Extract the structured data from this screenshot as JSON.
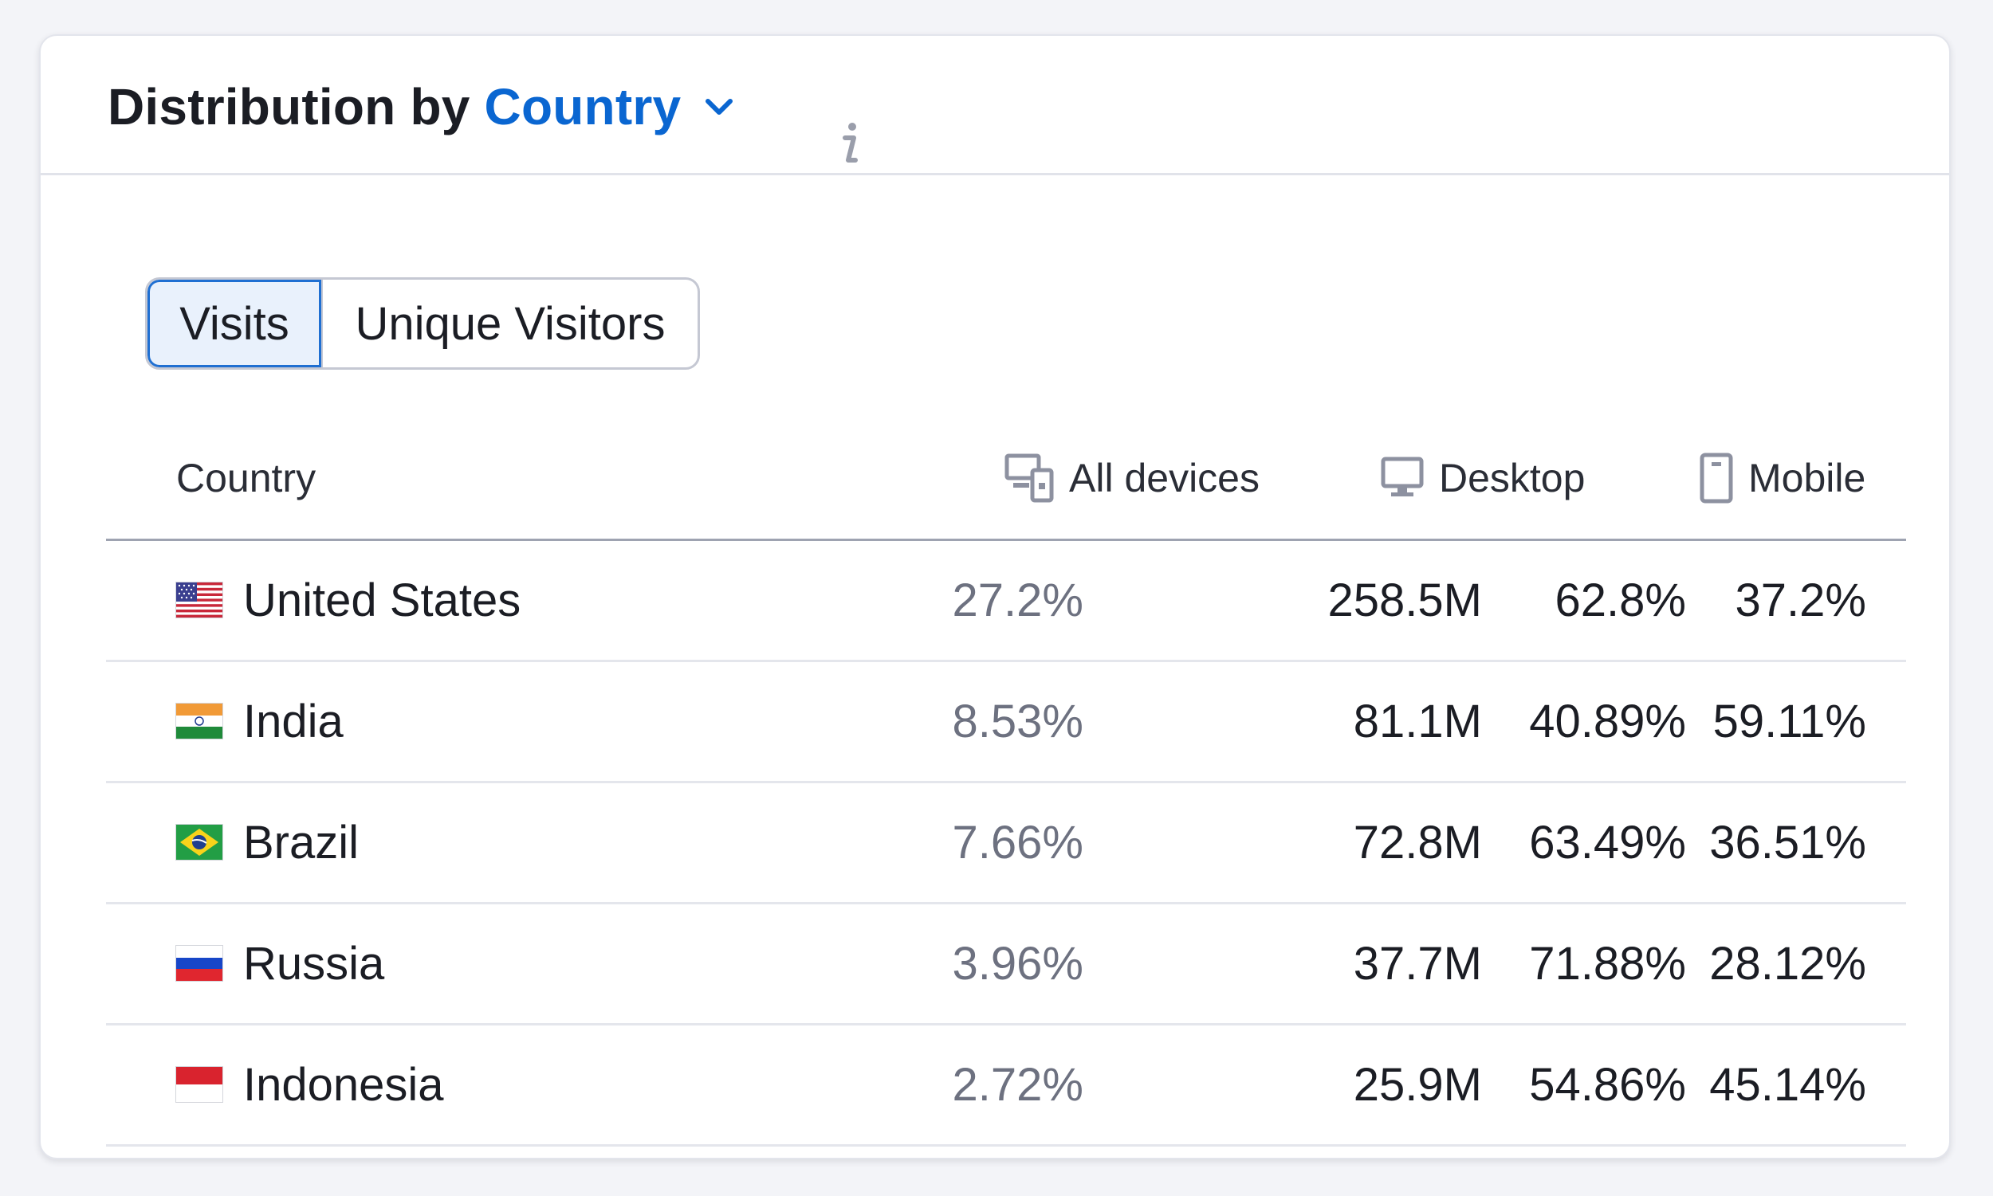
{
  "widget": {
    "title_prefix": "Distribution by",
    "dimension_label": "Country",
    "chevron_icon": "chevron-down-icon",
    "info_icon": "info-icon",
    "accent_color": "#0a66d1"
  },
  "toggle": {
    "options": [
      "Visits",
      "Unique Visitors"
    ],
    "selected": "Visits"
  },
  "table": {
    "headers": {
      "country": "Country",
      "all_devices": "All devices",
      "desktop": "Desktop",
      "mobile": "Mobile"
    },
    "header_icons": {
      "all_devices": "devices-icon",
      "desktop": "desktop-monitor-icon",
      "mobile": "mobile-phone-icon"
    },
    "rows": [
      {
        "country": "United States",
        "flag": "us-flag-icon",
        "share": "27.2%",
        "all_devices": "258.5M",
        "desktop": "62.8%",
        "mobile": "37.2%"
      },
      {
        "country": "India",
        "flag": "india-flag-icon",
        "share": "8.53%",
        "all_devices": "81.1M",
        "desktop": "40.89%",
        "mobile": "59.11%"
      },
      {
        "country": "Brazil",
        "flag": "brazil-flag-icon",
        "share": "7.66%",
        "all_devices": "72.8M",
        "desktop": "63.49%",
        "mobile": "36.51%"
      },
      {
        "country": "Russia",
        "flag": "russia-flag-icon",
        "share": "3.96%",
        "all_devices": "37.7M",
        "desktop": "71.88%",
        "mobile": "28.12%"
      },
      {
        "country": "Indonesia",
        "flag": "indonesia-flag-icon",
        "share": "2.72%",
        "all_devices": "25.9M",
        "desktop": "54.86%",
        "mobile": "45.14%"
      }
    ]
  }
}
